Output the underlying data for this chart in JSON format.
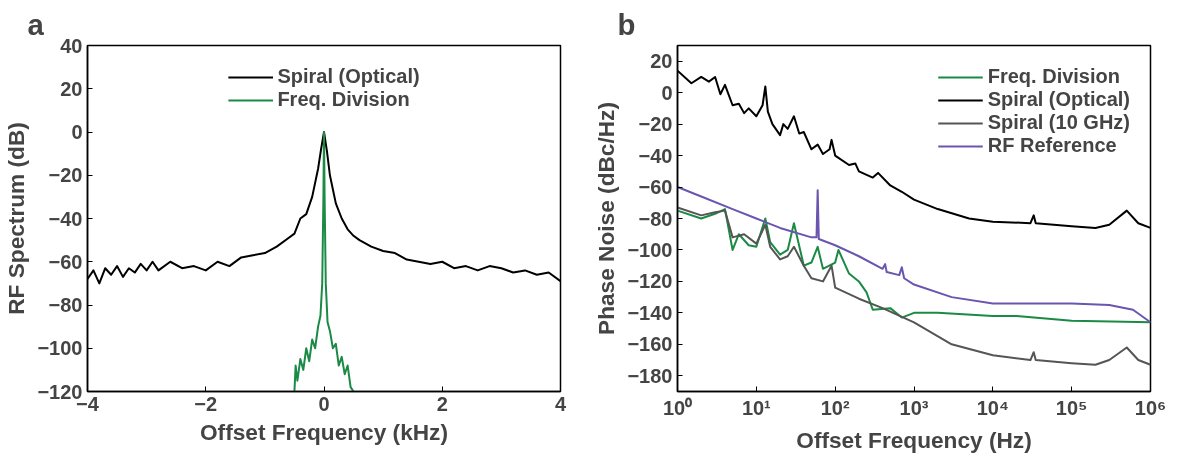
{
  "chart_data": [
    {
      "type": "line",
      "title": "a",
      "xlabel": "Offset Frequency (kHz)",
      "ylabel": "RF Spectrum (dB)",
      "xlim": [
        -4,
        4
      ],
      "ylim": [
        -120,
        40
      ],
      "xticks": [
        -4,
        -2,
        0,
        2,
        4
      ],
      "yticks": [
        -120,
        -100,
        -80,
        -60,
        -40,
        -20,
        0,
        20,
        40
      ],
      "grid": false,
      "legend": "top",
      "line_style": "solid",
      "marker": "none",
      "series": [
        {
          "name": "Spiral (Optical)",
          "color": "#000000",
          "x": [
            -4,
            -3.9,
            -3.8,
            -3.7,
            -3.6,
            -3.5,
            -3.4,
            -3.3,
            -3.2,
            -3.1,
            -3.0,
            -2.9,
            -2.8,
            -2.6,
            -2.4,
            -2.2,
            -2.0,
            -1.8,
            -1.6,
            -1.4,
            -1.2,
            -1.0,
            -0.8,
            -0.6,
            -0.5,
            -0.4,
            -0.3,
            -0.2,
            -0.1,
            -0.05,
            0,
            0.05,
            0.1,
            0.2,
            0.3,
            0.4,
            0.5,
            0.6,
            0.8,
            1.0,
            1.2,
            1.4,
            1.6,
            1.8,
            2.0,
            2.2,
            2.4,
            2.6,
            2.8,
            3.0,
            3.2,
            3.4,
            3.6,
            3.8,
            4.0
          ],
          "values": [
            -68,
            -64,
            -70,
            -63,
            -66,
            -62,
            -67,
            -63,
            -65,
            -61,
            -64,
            -60,
            -64,
            -60,
            -63,
            -62,
            -64,
            -60,
            -62,
            -58,
            -57,
            -56,
            -53,
            -49,
            -47,
            -40,
            -38,
            -30,
            -17,
            -8,
            0,
            -9,
            -20,
            -33,
            -40,
            -45,
            -48,
            -50,
            -53,
            -55,
            -56,
            -59,
            -60,
            -61,
            -60,
            -63,
            -62,
            -64,
            -62,
            -63,
            -65,
            -64,
            -66,
            -65,
            -69
          ]
        },
        {
          "name": "Freq. Division",
          "color": "#1a8a45",
          "x": [
            -0.5,
            -0.48,
            -0.45,
            -0.4,
            -0.35,
            -0.3,
            -0.25,
            -0.2,
            -0.15,
            -0.1,
            -0.06,
            -0.03,
            -0.01,
            0,
            0.01,
            0.03,
            0.06,
            0.1,
            0.15,
            0.2,
            0.25,
            0.3,
            0.35,
            0.4,
            0.45,
            0.5
          ],
          "values": [
            -120,
            -108,
            -115,
            -105,
            -110,
            -100,
            -106,
            -96,
            -100,
            -90,
            -85,
            -70,
            -30,
            0,
            -30,
            -70,
            -88,
            -92,
            -100,
            -98,
            -108,
            -104,
            -112,
            -108,
            -118,
            -120
          ]
        }
      ]
    },
    {
      "type": "line",
      "title": "b",
      "xlabel": "Offset Frequency (Hz)",
      "ylabel": "Phase Noise (dBc/Hz)",
      "log": "x",
      "xlim": [
        1,
        1000000
      ],
      "ylim": [
        -190,
        30
      ],
      "xticks": [
        {
          "value": 1,
          "label": "10⁰"
        },
        {
          "value": 10,
          "label": "10¹"
        },
        {
          "value": 100,
          "label": "10²"
        },
        {
          "value": 1000,
          "label": "10³"
        },
        {
          "value": 10000,
          "label": "10⁴"
        },
        {
          "value": 100000,
          "label": "10⁵"
        },
        {
          "value": 1000000,
          "label": "10⁶"
        }
      ],
      "yticks": [
        -180,
        -160,
        -140,
        -120,
        -100,
        -80,
        -60,
        -40,
        -20,
        0,
        20
      ],
      "grid": false,
      "legend": "top right",
      "line_style": "solid",
      "marker": "none",
      "series": [
        {
          "name": "Freq. Division",
          "color": "#1a8a45",
          "x": [
            1,
            2,
            3,
            4,
            5,
            6,
            8,
            10,
            13,
            15,
            20,
            25,
            30,
            40,
            50,
            60,
            70,
            100,
            110,
            150,
            200,
            250,
            300,
            500,
            700,
            1000,
            2000,
            10000,
            20000,
            100000,
            1000000
          ],
          "values": [
            -75,
            -80,
            -77,
            -74,
            -100,
            -90,
            -97,
            -98,
            -80,
            -95,
            -103,
            -100,
            -83,
            -110,
            -108,
            -98,
            -112,
            -108,
            -100,
            -115,
            -120,
            -127,
            -138,
            -137,
            -143,
            -140,
            -140,
            -142,
            -142,
            -145,
            -146
          ]
        },
        {
          "name": "Spiral (Optical)",
          "color": "#000000",
          "x": [
            1,
            1.5,
            2,
            2.5,
            3,
            3.5,
            4,
            5,
            6,
            7,
            8,
            10,
            12,
            13,
            14,
            16,
            20,
            22,
            25,
            30,
            35,
            40,
            50,
            60,
            70,
            85,
            90,
            100,
            150,
            180,
            200,
            300,
            350,
            500,
            700,
            1000,
            2000,
            5000,
            10000,
            30000,
            33000,
            35000,
            100000,
            200000,
            300000,
            500000,
            700000,
            1000000
          ],
          "values": [
            14,
            6,
            10,
            7,
            10,
            -1,
            5,
            -8,
            -7,
            -13,
            -10,
            -15,
            -8,
            4,
            -12,
            -20,
            -27,
            -20,
            -23,
            -15,
            -26,
            -25,
            -36,
            -33,
            -39,
            -36,
            -30,
            -40,
            -46,
            -45,
            -50,
            -54,
            -51,
            -59,
            -63,
            -68,
            -74,
            -80,
            -82,
            -83,
            -78,
            -83,
            -85,
            -86,
            -84,
            -75,
            -83,
            -86
          ]
        },
        {
          "name": "Spiral (10 GHz)",
          "color": "#555555",
          "x": [
            1,
            2,
            3,
            4,
            5,
            7,
            10,
            13,
            15,
            20,
            25,
            30,
            40,
            50,
            70,
            90,
            100,
            200,
            400,
            1000,
            3000,
            10000,
            30000,
            33000,
            35000,
            100000,
            200000,
            300000,
            500000,
            700000,
            1000000
          ],
          "values": [
            -73,
            -78,
            -76,
            -75,
            -92,
            -90,
            -96,
            -84,
            -98,
            -106,
            -104,
            -98,
            -110,
            -118,
            -120,
            -110,
            -124,
            -131,
            -137,
            -146,
            -160,
            -167,
            -170,
            -165,
            -170,
            -172,
            -173,
            -170,
            -162,
            -170,
            -173
          ]
        },
        {
          "name": "RF Reference",
          "color": "#6a55b0",
          "x": [
            1,
            2,
            5,
            10,
            20,
            50,
            58,
            60,
            62,
            100,
            200,
            400,
            430,
            450,
            650,
            700,
            750,
            1000,
            3000,
            10000,
            100000,
            300000,
            600000,
            1000000
          ],
          "values": [
            -60,
            -66,
            -74,
            -80,
            -86,
            -92,
            -92,
            -62,
            -93,
            -97,
            -104,
            -112,
            -109,
            -114,
            -116,
            -111,
            -118,
            -122,
            -130,
            -134,
            -134,
            -135,
            -138,
            -146
          ]
        }
      ]
    }
  ]
}
